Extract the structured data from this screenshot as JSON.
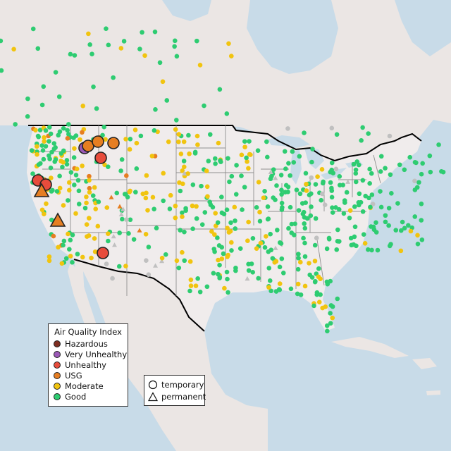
{
  "legend": {
    "title": "Air Quality Index",
    "categories": [
      {
        "label": "Hazardous",
        "color": "#7e2d20"
      },
      {
        "label": "Very Unhealthy",
        "color": "#9b59b6"
      },
      {
        "label": "Unhealthy",
        "color": "#e74c3c"
      },
      {
        "label": "USG",
        "color": "#e67e22"
      },
      {
        "label": "Moderate",
        "color": "#f1c40f"
      },
      {
        "label": "Good",
        "color": "#2ecc71"
      }
    ]
  },
  "shape_legend": {
    "temporary": "temporary",
    "permanent": "permanent"
  },
  "colors": {
    "ocean": "#c8dbe8",
    "land": "#f0ecec",
    "land_outside": "#ebe6e4",
    "state_border": "#8f8f8f",
    "country_border": "#000000",
    "no_data": "#c0c0c0"
  }
}
